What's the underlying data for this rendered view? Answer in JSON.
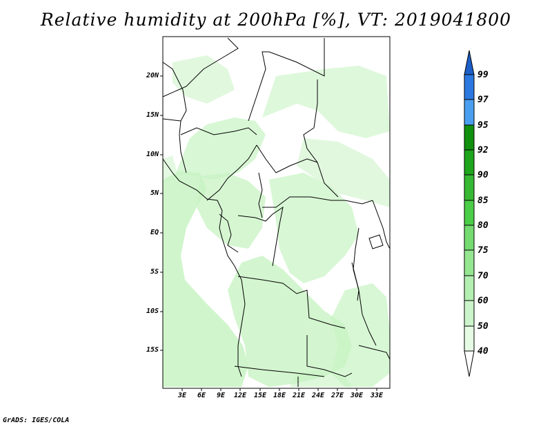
{
  "title": "Relative humidity at 200hPa [%], VT: 2019041800",
  "map": {
    "variable": "Relative humidity",
    "level": "200hPa",
    "valid_time": "2019041800",
    "lat_labels": [
      "20N",
      "15N",
      "10N",
      "5N",
      "EQ",
      "5S",
      "10S",
      "15S"
    ],
    "lon_labels": [
      "3E",
      "6E",
      "9E",
      "12E",
      "15E",
      "18E",
      "21E",
      "24E",
      "27E",
      "30E",
      "33E"
    ]
  },
  "colorbar": {
    "levels": [
      "99",
      "97",
      "95",
      "92",
      "90",
      "85",
      "80",
      "75",
      "70",
      "60",
      "50",
      "40"
    ],
    "colors": [
      "#1c5fc8",
      "#2b79e0",
      "#4a9ef0",
      "#11900e",
      "#1ea51b",
      "#37b833",
      "#4bcd48",
      "#74db70",
      "#95e691",
      "#b3efb0",
      "#ccf4ca",
      "#e6fbe4"
    ],
    "fill_main": "#c8f3c3",
    "fill_light": "#e6fbe4"
  },
  "credit": "GrADS: IGES/COLA"
}
